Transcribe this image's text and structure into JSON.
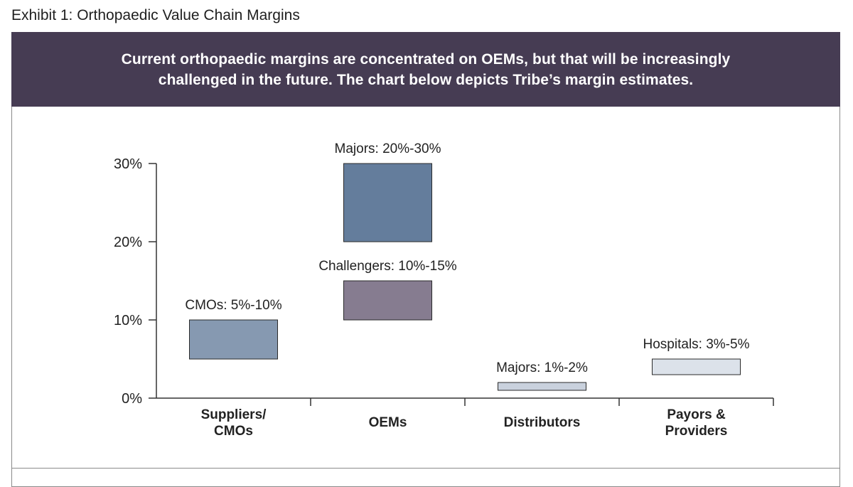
{
  "exhibit_title": "Exhibit 1: Orthopaedic Value Chain Margins",
  "banner": {
    "line1": "Current orthopaedic margins are concentrated on OEMs, but that will be increasingly",
    "line2": "challenged in the future. The chart below depicts Tribe’s margin estimates."
  },
  "chart_data": {
    "type": "bar",
    "subtype": "floating-range",
    "ylim": [
      0,
      30
    ],
    "y_ticks": [
      {
        "value": 0,
        "label": "0%"
      },
      {
        "value": 10,
        "label": "10%"
      },
      {
        "value": 20,
        "label": "20%"
      },
      {
        "value": 30,
        "label": "30%"
      }
    ],
    "categories": [
      {
        "lines": [
          "Suppliers/",
          "CMOs"
        ]
      },
      {
        "lines": [
          "OEMs"
        ]
      },
      {
        "lines": [
          "Distributors"
        ]
      },
      {
        "lines": [
          "Payors &",
          "Providers"
        ]
      }
    ],
    "bars": [
      {
        "category_index": 0,
        "low": 5,
        "high": 10,
        "label": "CMOs: 5%-10%",
        "color": "#8699b1"
      },
      {
        "category_index": 1,
        "low": 20,
        "high": 30,
        "label": "Majors: 20%-30%",
        "color": "#647d9c"
      },
      {
        "category_index": 1,
        "low": 10,
        "high": 15,
        "label": "Challengers: 10%-15%",
        "color": "#867c90"
      },
      {
        "category_index": 2,
        "low": 1,
        "high": 2,
        "label": "Majors: 1%-2%",
        "color": "#c9d1dd"
      },
      {
        "category_index": 3,
        "low": 3,
        "high": 5,
        "label": "Hospitals: 3%-5%",
        "color": "#dce2ea"
      }
    ],
    "grid": false,
    "legend": "none"
  }
}
